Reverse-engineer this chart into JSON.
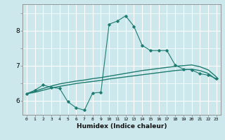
{
  "xlabel": "Humidex (Indice chaleur)",
  "background_color": "#cce8ec",
  "grid_color": "#ffffff",
  "line_color": "#1e7b70",
  "xlim": [
    -0.5,
    23.5
  ],
  "ylim": [
    5.6,
    8.75
  ],
  "yticks": [
    6,
    7,
    8
  ],
  "xtick_labels": [
    "0",
    "1",
    "2",
    "3",
    "4",
    "5",
    "6",
    "7",
    "8",
    "9",
    "10",
    "11",
    "12",
    "13",
    "14",
    "15",
    "16",
    "17",
    "18",
    "19",
    "20",
    "21",
    "22",
    "23"
  ],
  "line1_x": [
    0,
    1,
    2,
    3,
    4,
    5,
    6,
    7,
    8,
    9,
    10,
    11,
    12,
    13,
    14,
    15,
    16,
    17,
    18,
    19,
    20,
    21,
    22,
    23
  ],
  "line1_y": [
    6.2,
    6.3,
    6.45,
    6.38,
    6.35,
    5.97,
    5.8,
    5.73,
    6.22,
    6.24,
    8.18,
    8.27,
    8.42,
    8.12,
    7.58,
    7.43,
    7.43,
    7.43,
    7.02,
    6.9,
    6.88,
    6.77,
    6.73,
    6.63
  ],
  "line2_x": [
    0,
    1,
    2,
    3,
    4,
    5,
    6,
    7,
    8,
    9,
    10,
    11,
    12,
    13,
    14,
    15,
    16,
    17,
    18,
    19,
    20,
    21,
    22,
    23
  ],
  "line2_y": [
    6.2,
    6.27,
    6.35,
    6.42,
    6.48,
    6.52,
    6.56,
    6.59,
    6.63,
    6.66,
    6.7,
    6.74,
    6.78,
    6.82,
    6.86,
    6.89,
    6.92,
    6.95,
    6.98,
    7.0,
    7.02,
    6.97,
    6.88,
    6.68
  ],
  "line3_x": [
    0,
    1,
    2,
    3,
    4,
    5,
    6,
    7,
    8,
    9,
    10,
    11,
    12,
    13,
    14,
    15,
    16,
    17,
    18,
    19,
    20,
    21,
    22,
    23
  ],
  "line3_y": [
    6.2,
    6.24,
    6.3,
    6.36,
    6.41,
    6.45,
    6.49,
    6.52,
    6.55,
    6.58,
    6.62,
    6.65,
    6.68,
    6.71,
    6.74,
    6.77,
    6.8,
    6.83,
    6.86,
    6.88,
    6.9,
    6.86,
    6.78,
    6.6
  ]
}
